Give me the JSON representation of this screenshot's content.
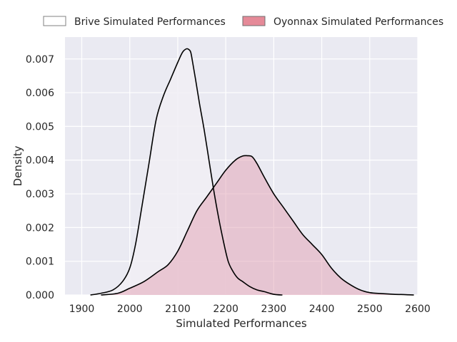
{
  "chart_data": {
    "type": "area",
    "xlabel": "Simulated Performances",
    "ylabel": "Density",
    "xlim": [
      1865,
      2600
    ],
    "ylim": [
      0,
      0.00765
    ],
    "xticks": [
      1900,
      2000,
      2100,
      2200,
      2300,
      2400,
      2500,
      2600
    ],
    "yticks": [
      0.0,
      0.001,
      0.002,
      0.003,
      0.004,
      0.005,
      0.006,
      0.007
    ],
    "ytick_labels": [
      "0.000",
      "0.001",
      "0.002",
      "0.003",
      "0.004",
      "0.005",
      "0.006",
      "0.007"
    ],
    "grid": true,
    "legend_position": "top",
    "background": "#EAEAF2",
    "grid_color": "#FFFFFF",
    "series": [
      {
        "name": "Brive Simulated Performances",
        "fill": "#F1EFF5",
        "legend_fill": "#FFFFFF",
        "stroke": "#000000",
        "x": [
          1918,
          1940,
          1965,
          1985,
          2000,
          2012,
          2025,
          2040,
          2055,
          2070,
          2085,
          2100,
          2110,
          2118,
          2123,
          2127,
          2131,
          2137,
          2145,
          2155,
          2165,
          2175,
          2185,
          2195,
          2205,
          2215,
          2225,
          2235,
          2250,
          2265,
          2280,
          2300,
          2318
        ],
        "y": [
          0.0,
          5e-05,
          0.00015,
          0.0004,
          0.0008,
          0.0015,
          0.0026,
          0.0039,
          0.0052,
          0.0059,
          0.0064,
          0.0069,
          0.0072,
          0.0073,
          0.00728,
          0.0072,
          0.0069,
          0.0064,
          0.0057,
          0.0049,
          0.004,
          0.0031,
          0.0023,
          0.0016,
          0.001,
          0.0007,
          0.0005,
          0.0004,
          0.00025,
          0.00015,
          0.0001,
          2e-05,
          0.0
        ]
      },
      {
        "name": "Oyonnax Simulated Performances",
        "fill": "#E3A3B5",
        "legend_fill": "#E58A98",
        "stroke": "#000000",
        "x": [
          1940,
          1975,
          2000,
          2030,
          2060,
          2080,
          2100,
          2120,
          2140,
          2160,
          2180,
          2200,
          2220,
          2235,
          2245,
          2255,
          2265,
          2280,
          2300,
          2320,
          2340,
          2360,
          2380,
          2400,
          2420,
          2440,
          2460,
          2480,
          2500,
          2525,
          2550,
          2575,
          2592
        ],
        "y": [
          0.0,
          5e-05,
          0.0002,
          0.0004,
          0.0007,
          0.0009,
          0.0013,
          0.0019,
          0.0025,
          0.0029,
          0.0033,
          0.0037,
          0.004,
          0.00412,
          0.00413,
          0.0041,
          0.0039,
          0.0035,
          0.003,
          0.0026,
          0.0022,
          0.0018,
          0.0015,
          0.0012,
          0.0008,
          0.0005,
          0.0003,
          0.00015,
          7e-05,
          4e-05,
          2e-05,
          1e-05,
          0.0
        ]
      }
    ]
  }
}
